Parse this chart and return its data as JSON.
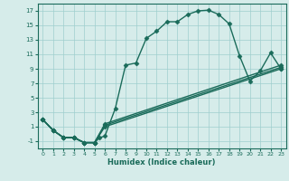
{
  "xlabel": "Humidex (Indice chaleur)",
  "background_color": "#d6ecea",
  "line_color": "#1a6b5a",
  "grid_color": "#9ecece",
  "xlim": [
    -0.5,
    23.5
  ],
  "ylim": [
    -2,
    18
  ],
  "xticks": [
    0,
    1,
    2,
    3,
    4,
    5,
    6,
    7,
    8,
    9,
    10,
    11,
    12,
    13,
    14,
    15,
    16,
    17,
    18,
    19,
    20,
    21,
    22,
    23
  ],
  "yticks": [
    -1,
    1,
    3,
    5,
    7,
    9,
    11,
    13,
    15,
    17
  ],
  "main_line": {
    "x": [
      0,
      1,
      2,
      3,
      4,
      5,
      5.5,
      6,
      7,
      8,
      9,
      10,
      11,
      12,
      13,
      14,
      15,
      16,
      17,
      18,
      19,
      20,
      21,
      22,
      23
    ],
    "y": [
      2,
      0.5,
      -0.5,
      -0.5,
      -1.2,
      -1.2,
      -0.5,
      -0.3,
      3.5,
      9.5,
      9.8,
      13.2,
      14.2,
      15.5,
      15.5,
      16.5,
      17,
      17.1,
      16.5,
      15.2,
      10.8,
      7.3,
      8.7,
      11.2,
      9.0
    ]
  },
  "flat_lines": [
    {
      "x": [
        0,
        1,
        2,
        3,
        4,
        5,
        6,
        23
      ],
      "y": [
        2,
        0.5,
        -0.5,
        -0.5,
        -1.2,
        -1.2,
        1.0,
        9.0
      ]
    },
    {
      "x": [
        0,
        1,
        2,
        3,
        4,
        5,
        6,
        23
      ],
      "y": [
        2,
        0.5,
        -0.5,
        -0.5,
        -1.2,
        -1.2,
        1.2,
        9.2
      ]
    },
    {
      "x": [
        0,
        1,
        2,
        3,
        4,
        5,
        6,
        23
      ],
      "y": [
        2,
        0.5,
        -0.5,
        -0.5,
        -1.2,
        -1.2,
        1.4,
        9.5
      ]
    }
  ],
  "marker": "D",
  "marker_size": 2.5,
  "linewidth": 1.0
}
